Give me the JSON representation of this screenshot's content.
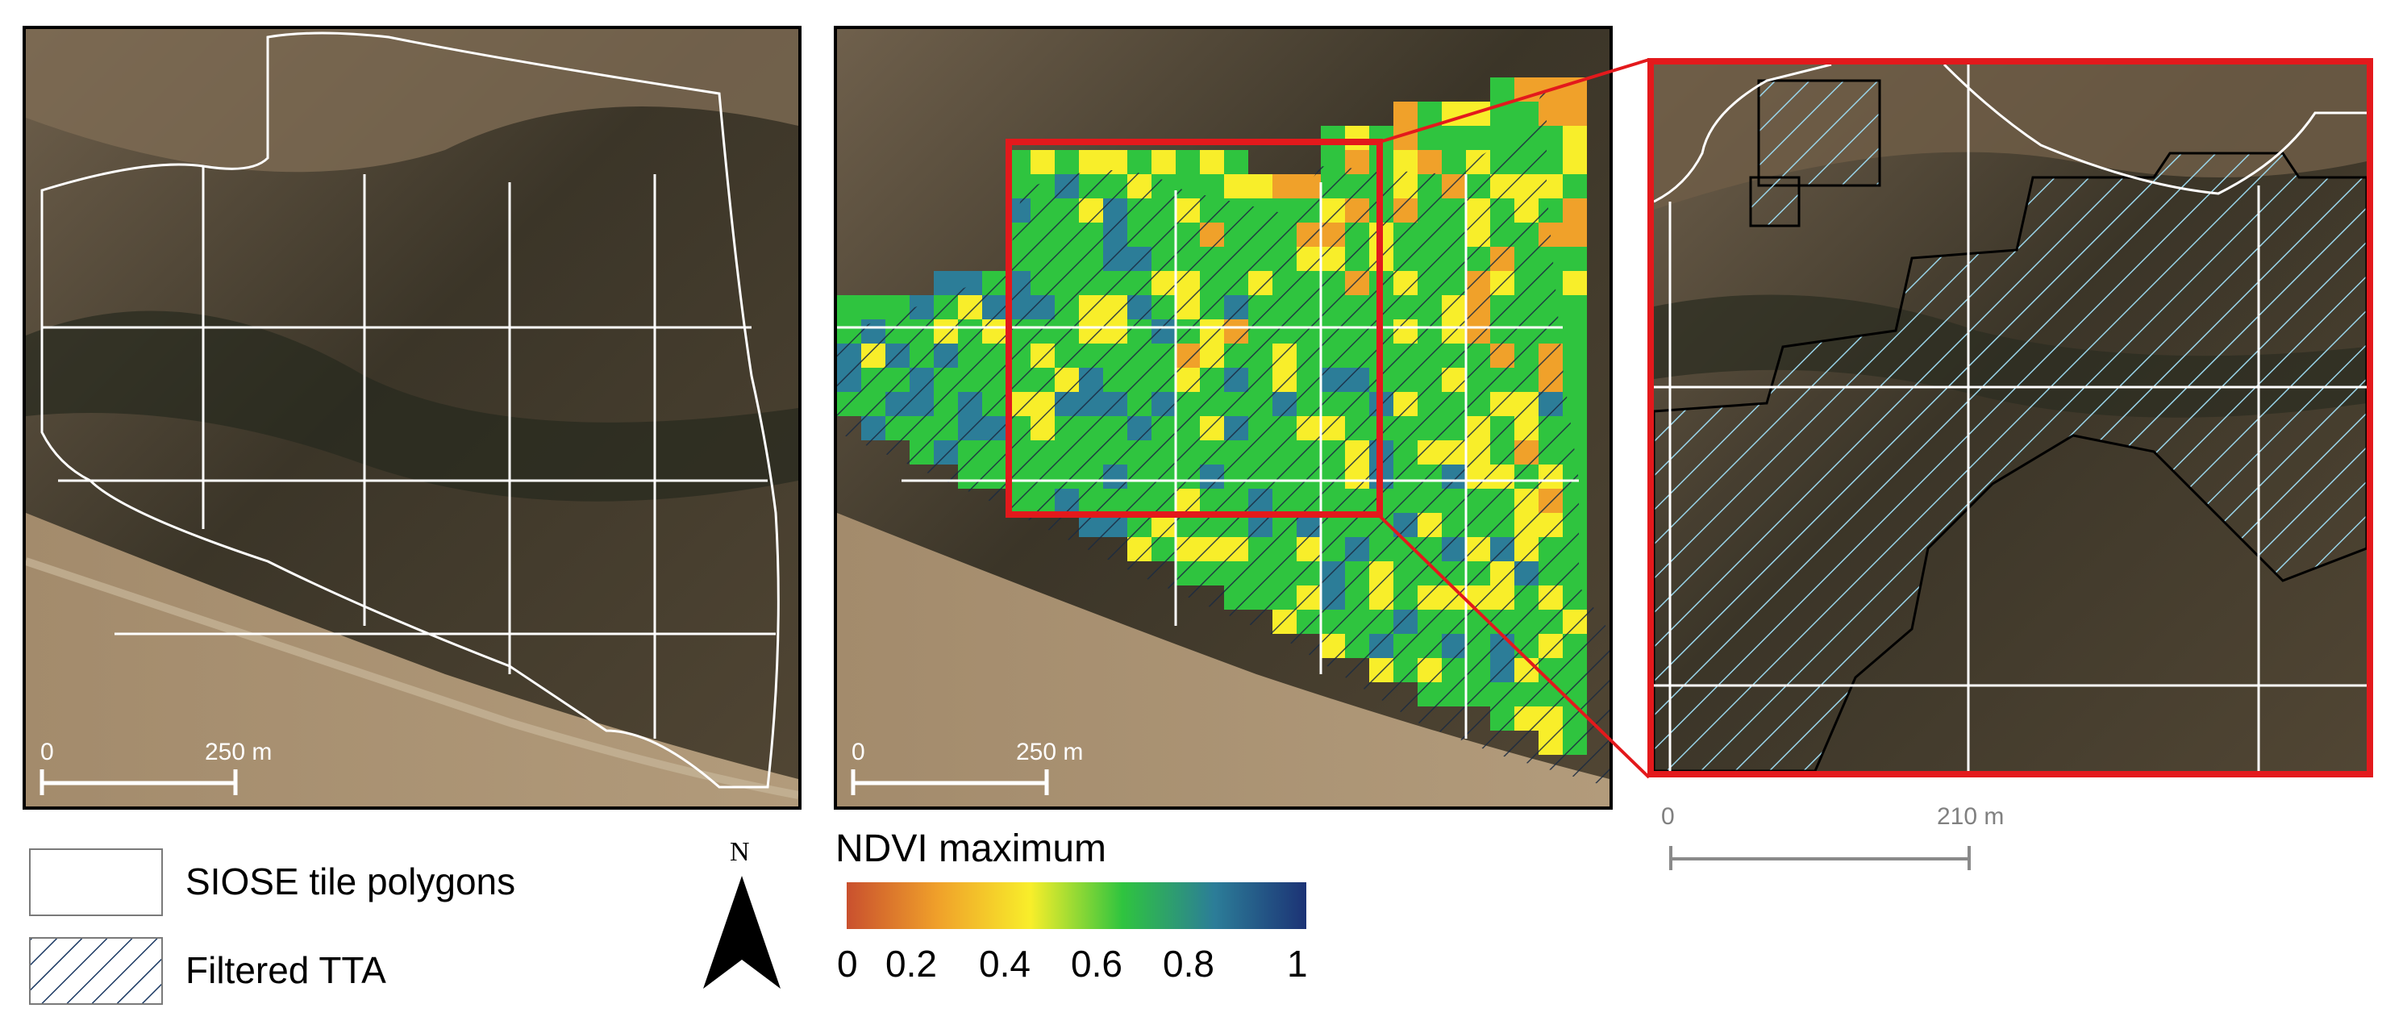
{
  "panels": {
    "left": {
      "scale": {
        "zero": "0",
        "distance": "250 m"
      }
    },
    "middle": {
      "scale": {
        "zero": "0",
        "distance": "250 m"
      }
    },
    "zoom": {
      "scale": {
        "zero": "0",
        "distance": "210 m"
      }
    }
  },
  "legend": {
    "siose_label": "SIOSE tile polygons",
    "tta_label": "Filtered TTA",
    "north_label": "N",
    "ndvi_title": "NDVI maximum",
    "ndvi_ticks": [
      "0",
      "0.2",
      "0.4",
      "0.6",
      "0.8",
      "1"
    ],
    "ndvi_colors": [
      "#c9502e",
      "#f0a12a",
      "#f8ee2a",
      "#2fc43f",
      "#2c7d98",
      "#1c3375"
    ]
  },
  "colors": {
    "frame": "#000000",
    "zoom_frame": "#e3191c",
    "tile_lines": "#ffffff",
    "hatch_blue": "#9ad5ea"
  }
}
